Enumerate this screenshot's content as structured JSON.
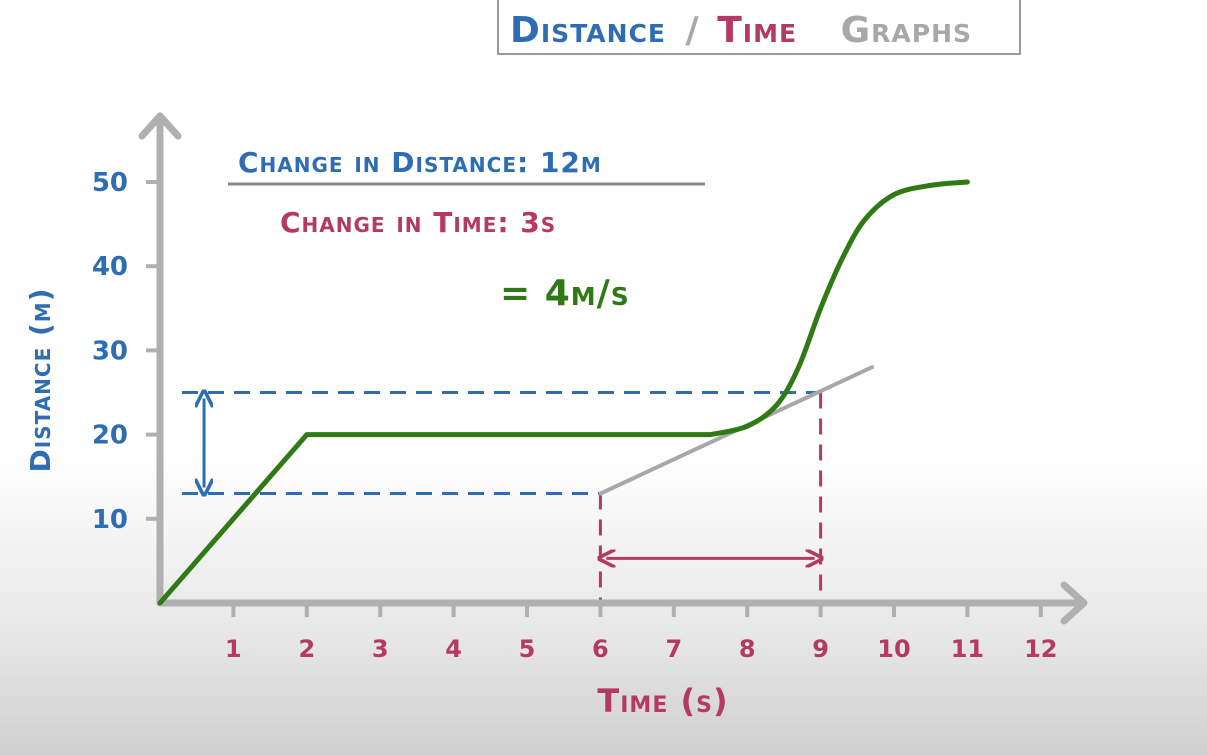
{
  "title": {
    "part1": "Distance",
    "separator": "/",
    "part2": "Time",
    "part3": "Graphs"
  },
  "annotations": {
    "numerator": "Change in Distance: 12m",
    "denominator": "Change in Time: 3s",
    "result": "= 4m/s"
  },
  "colors": {
    "blue": "#2f6db3",
    "pink": "#b53a63",
    "green": "#2f7a14",
    "gray": "#a8a8a8",
    "axis": "#b0b0b0"
  },
  "chart_data": {
    "type": "line",
    "xlabel": "Time (s)",
    "ylabel": "Distance (m)",
    "xlim": [
      0,
      12
    ],
    "ylim": [
      0,
      50
    ],
    "xticks": [
      "1",
      "2",
      "3",
      "4",
      "5",
      "6",
      "7",
      "8",
      "9",
      "10",
      "11",
      "12"
    ],
    "yticks": [
      "10",
      "20",
      "30",
      "40",
      "50"
    ],
    "series": [
      {
        "x": [
          0,
          2,
          7.5,
          8,
          8.4,
          8.7,
          9.0,
          9.3,
          9.6,
          10.0,
          10.5,
          11
        ],
        "y": [
          0,
          20,
          20,
          21,
          23.5,
          28,
          35,
          41,
          45.5,
          48.5,
          49.6,
          50
        ]
      }
    ],
    "tangent": {
      "x": [
        6,
        9.7
      ],
      "y": [
        13,
        28
      ]
    },
    "guides": {
      "distance_levels": [
        13,
        25
      ],
      "time_levels": [
        6,
        9
      ]
    }
  }
}
